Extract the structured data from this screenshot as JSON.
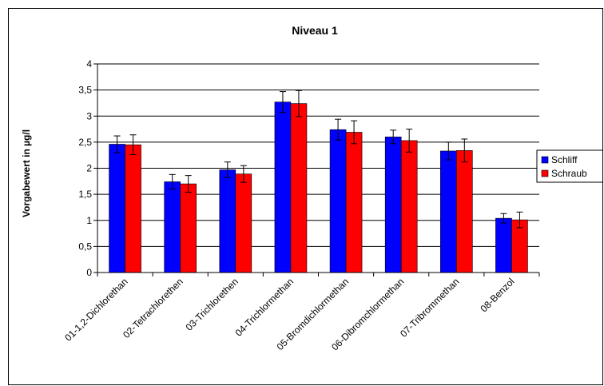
{
  "chart_data": {
    "type": "bar",
    "title": "Niveau 1",
    "xlabel": "",
    "ylabel": "Vorgabewert in µg/l",
    "ylim": [
      0,
      4
    ],
    "yticks": [
      "0",
      "0,5",
      "1",
      "1,5",
      "2",
      "2,5",
      "3",
      "3,5",
      "4"
    ],
    "grid": "horizontal",
    "legend_position": "right",
    "categories": [
      "01-1,2-Dichlorethan",
      "02-Tetrachlorethen",
      "03-Trichlorethen",
      "04-Trichlormethan",
      "05-Bromdichlormethan",
      "06-Dibromchlormethan",
      "07-Tribrommethan",
      "08-Benzol"
    ],
    "series": [
      {
        "name": "Schliff",
        "color": "#0000ff",
        "values": [
          2.46,
          1.74,
          1.97,
          3.27,
          2.74,
          2.6,
          2.33,
          1.04
        ],
        "errors": [
          0.16,
          0.14,
          0.15,
          0.2,
          0.2,
          0.13,
          0.17,
          0.09
        ]
      },
      {
        "name": "Schraub",
        "color": "#ff0000",
        "values": [
          2.45,
          1.7,
          1.89,
          3.24,
          2.69,
          2.53,
          2.34,
          1.01
        ],
        "errors": [
          0.19,
          0.16,
          0.16,
          0.25,
          0.22,
          0.22,
          0.22,
          0.15
        ]
      }
    ]
  }
}
